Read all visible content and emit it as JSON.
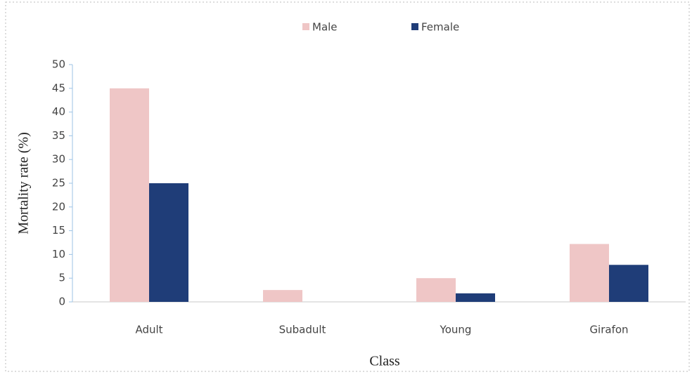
{
  "chart_data": {
    "type": "bar",
    "categories": [
      "Adult",
      "Subadult",
      "Young",
      "Girafon"
    ],
    "series": [
      {
        "name": "Male",
        "color": "#efc6c6",
        "values": [
          45,
          2.5,
          5,
          12.2
        ]
      },
      {
        "name": "Female",
        "color": "#1f3d78",
        "values": [
          25,
          0,
          1.8,
          7.8
        ]
      }
    ],
    "xlabel": "Class",
    "ylabel": "Mortality rate (%)",
    "ylim": [
      0,
      50
    ],
    "yticks": [
      0,
      5,
      10,
      15,
      20,
      25,
      30,
      35,
      40,
      45,
      50
    ],
    "legend": "top",
    "grid": false
  }
}
